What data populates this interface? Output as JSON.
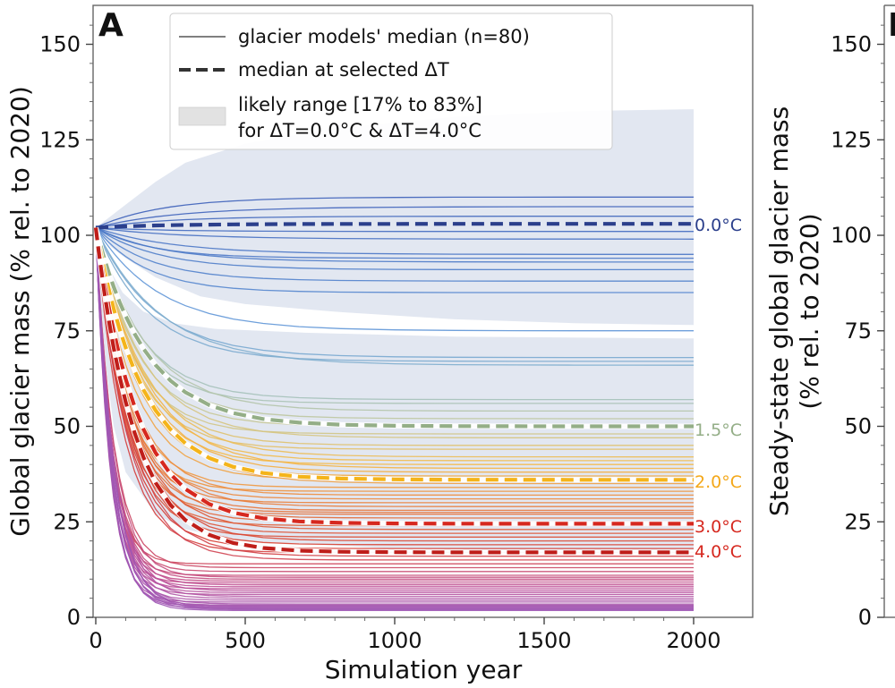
{
  "panel_a": {
    "label": "A",
    "ylabel": "Global glacier mass (% rel. to 2020)",
    "xlabel": "Simulation year",
    "legend": {
      "thin_line": "glacier models' median (n=80)",
      "dashed_line": "median at selected ΔT",
      "range_line1": "likely range [17% to 83%]",
      "range_line2": "for ΔT=0.0°C & ΔT=4.0°C"
    },
    "curve_labels": [
      "0.0°C",
      "1.5°C",
      "2.0°C",
      "3.0°C",
      "4.0°C"
    ]
  },
  "panel_b": {
    "label": "B",
    "ylabel_line1": "Steady-state global glacier mass",
    "ylabel_line2": "(% rel. to 2020)"
  },
  "colors": {
    "cold": "#2b3f8c",
    "green": "#94ae87",
    "orange": "#f4b41a",
    "red": "#d6281f",
    "darkred": "#bf1e1a",
    "band": "#dde3ef"
  },
  "chart_data": [
    {
      "type": "line",
      "panel": "A",
      "xlabel": "Simulation year",
      "ylabel": "Global glacier mass (% rel. to 2020)",
      "xlim": [
        -10,
        2100
      ],
      "ylim": [
        0,
        158
      ],
      "xticks": [
        0,
        500,
        1000,
        1500,
        2000
      ],
      "yticks": [
        0,
        25,
        50,
        75,
        100,
        125,
        150
      ],
      "start_value": 102,
      "likely_range": {
        "upper": [
          [
            0,
            102
          ],
          [
            100,
            108
          ],
          [
            200,
            114
          ],
          [
            300,
            119
          ],
          [
            500,
            124
          ],
          [
            800,
            128
          ],
          [
            1200,
            131
          ],
          [
            1600,
            132.5
          ],
          [
            2000,
            133
          ]
        ],
        "lower": [
          [
            0,
            102
          ],
          [
            30,
            68
          ],
          [
            60,
            50
          ],
          [
            100,
            38
          ],
          [
            200,
            27
          ],
          [
            300,
            23
          ],
          [
            500,
            20
          ],
          [
            1000,
            18
          ],
          [
            2000,
            17
          ]
        ],
        "upper_0C_lower": [
          [
            0,
            102
          ],
          [
            50,
            97
          ],
          [
            100,
            94
          ],
          [
            200,
            89
          ],
          [
            350,
            84
          ],
          [
            500,
            82
          ],
          [
            800,
            80
          ],
          [
            1200,
            78
          ],
          [
            1600,
            77
          ],
          [
            2000,
            76.5
          ]
        ]
      },
      "ensemble_final_values": [
        110,
        107.5,
        105,
        101,
        99,
        95,
        94,
        93,
        91,
        88,
        85,
        75,
        68,
        67,
        66,
        57,
        56,
        54,
        52,
        50,
        48,
        47,
        45,
        44,
        42,
        41,
        40,
        39,
        38,
        37,
        36,
        35,
        34,
        33,
        32,
        31,
        30,
        29,
        28,
        27.5,
        27,
        26,
        25,
        24,
        23,
        22,
        21,
        20,
        19,
        18,
        17,
        16,
        15,
        14,
        13,
        12,
        11,
        10.5,
        10,
        9.5,
        9,
        8.5,
        8,
        7.5,
        7,
        6.5,
        6,
        5.5,
        5,
        4.5,
        4,
        3.5,
        3.2,
        3,
        2.8,
        2.6,
        2.4,
        2.2,
        2.0,
        1.8
      ],
      "series": [
        {
          "name": "0.0°C",
          "final": 103,
          "color": "#2b3f8c"
        },
        {
          "name": "1.5°C",
          "final": 50,
          "color": "#94ae87"
        },
        {
          "name": "2.0°C",
          "final": 36,
          "color": "#f4b41a"
        },
        {
          "name": "3.0°C",
          "final": 24.5,
          "color": "#d6281f"
        },
        {
          "name": "4.0°C",
          "final": 17,
          "color": "#bf1e1a"
        }
      ]
    },
    {
      "type": "scatter",
      "panel": "B",
      "ylabel": "Steady-state global glacier mass (% rel. to 2020)",
      "ylim": [
        0,
        158
      ],
      "yticks": [
        0,
        25,
        50,
        75,
        100,
        125,
        150
      ]
    }
  ]
}
